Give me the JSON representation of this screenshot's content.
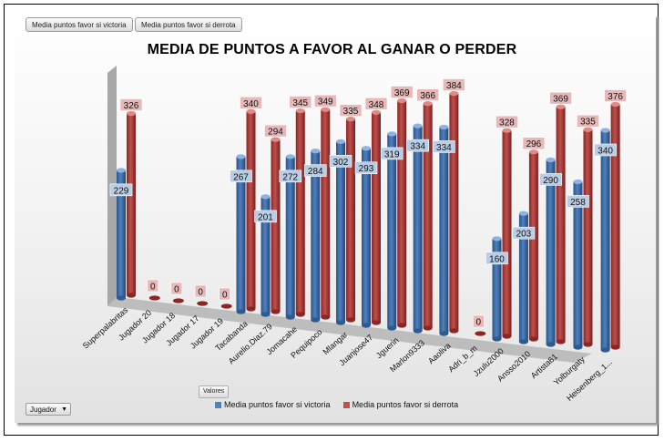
{
  "field_buttons": {
    "victoria": "Media puntos favor si victoria",
    "derrota": "Media puntos favor si derrota"
  },
  "valores_label": "Valores",
  "jugador_filter": "Jugador",
  "colors": {
    "victoria": "#4f81bd",
    "derrota": "#c0504d"
  },
  "chart_data": {
    "type": "bar",
    "title": "MEDIA DE PUNTOS A FAVOR AL GANAR O PERDER",
    "categories": [
      "Superpalabritas",
      "Jugador 20",
      "Jugador 18",
      "Jugador 17",
      "Jugador 19",
      "Tacabanda",
      "Aurelio.Diaz.79",
      "Jomacahe",
      "Pequipoco",
      "Mlangar",
      "Juanjose47",
      "Jguerin",
      "Marlon9333",
      "Aaoliva",
      "Adri_b_m",
      "Jzulu2000",
      "Ansso2010",
      "Artista61",
      "Yolburgaty",
      "Heisenberg_1..."
    ],
    "series": [
      {
        "name": "Media puntos favor si victoria",
        "values": [
          229,
          null,
          null,
          null,
          null,
          267,
          201,
          272,
          284,
          302,
          293,
          319,
          334,
          334,
          null,
          160,
          203,
          290,
          258,
          340
        ]
      },
      {
        "name": "Media puntos favor si derrota",
        "values": [
          326,
          0,
          0,
          0,
          0,
          340,
          294,
          345,
          349,
          335,
          348,
          369,
          366,
          384,
          0,
          328,
          296,
          369,
          335,
          376
        ]
      }
    ],
    "ylim": [
      0,
      400
    ],
    "legend_position": "bottom",
    "grid": false
  }
}
